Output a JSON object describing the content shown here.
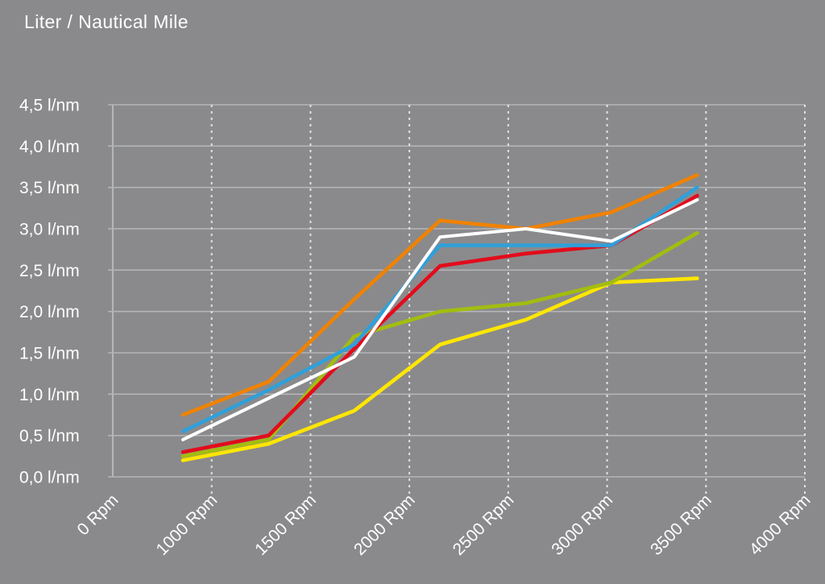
{
  "title": "Liter / Nautical Mile",
  "chart_data": {
    "type": "line",
    "title": "Liter / Nautical Mile",
    "legend": "none",
    "x_axis": {
      "unit": "Rpm",
      "tick_labels": [
        "0 Rpm",
        "1000 Rpm",
        "1500 Rpm",
        "2000 Rpm",
        "2500 Rpm",
        "3000 Rpm",
        "3500 Rpm",
        "4000 Rpm"
      ],
      "tick_label_rotation_deg": -45,
      "gridlines": "dashed"
    },
    "y_axis": {
      "unit": "l/nm",
      "tick_labels": [
        "4,5 l/nm",
        "4,0 l/nm",
        "3,5 l/nm",
        "3,0 l/nm",
        "2,5 l/nm",
        "2,0 l/nm",
        "1,5 l/nm",
        "1,0 l/nm",
        "0,5 l/nm",
        "0,0 l/nm"
      ],
      "min": 0,
      "max": 4.5,
      "step": 0.5,
      "gridlines": "solid"
    },
    "x": [
      1000,
      1500,
      2000,
      2500,
      3000,
      3500,
      4000
    ],
    "series": [
      {
        "name": "yellow-series",
        "color": "#ffe600",
        "values": [
          0.2,
          0.4,
          0.8,
          1.6,
          1.9,
          2.35,
          2.4
        ]
      },
      {
        "name": "green-series",
        "color": "#a3bd0f",
        "values": [
          0.25,
          0.45,
          1.7,
          2.0,
          2.1,
          2.35,
          2.95
        ]
      },
      {
        "name": "red-series",
        "color": "#e20c1c",
        "values": [
          0.3,
          0.5,
          1.55,
          2.55,
          2.7,
          2.8,
          3.4
        ]
      },
      {
        "name": "blue-series",
        "color": "#2fa0da",
        "values": [
          0.55,
          1.05,
          1.6,
          2.8,
          2.8,
          2.8,
          3.5
        ]
      },
      {
        "name": "orange-series",
        "color": "#f08200",
        "values": [
          0.75,
          1.15,
          2.15,
          3.1,
          3.0,
          3.2,
          3.65
        ]
      },
      {
        "name": "white-series",
        "color": "#ffffff",
        "values": [
          0.45,
          0.95,
          1.45,
          2.9,
          3.0,
          2.85,
          3.35
        ]
      }
    ]
  },
  "colors": {
    "background": "#8a8a8c",
    "grid_solid": "#b4b5b7",
    "grid_dashed": "#ebebeb",
    "text": "#ffffff"
  }
}
